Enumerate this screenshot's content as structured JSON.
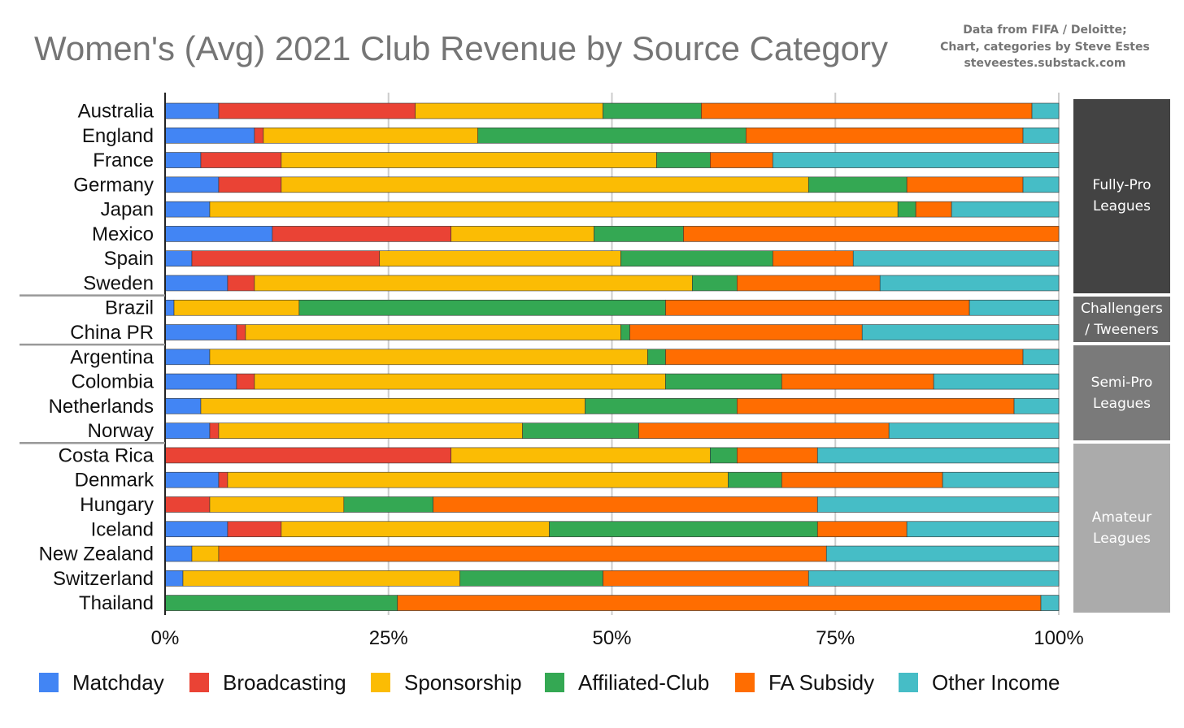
{
  "title": "Women's (Avg) 2021 Club Revenue by Source Category",
  "credit": {
    "line1": "Data from FIFA / Deloitte;",
    "line2": "Chart, categories by Steve Estes",
    "line3": "steveestes.substack.com"
  },
  "groups": [
    {
      "lines": [
        "Fully-Pro",
        "Leagues"
      ],
      "color": "#434343",
      "rows": [
        0,
        7
      ]
    },
    {
      "lines": [
        "Challengers",
        "/ Tweeners"
      ],
      "color": "#666666",
      "rows": [
        8,
        9
      ]
    },
    {
      "lines": [
        "Semi-Pro",
        "Leagues"
      ],
      "color": "#7a7a7a",
      "rows": [
        10,
        13
      ]
    },
    {
      "lines": [
        "Amateur",
        "Leagues"
      ],
      "color": "#ababab",
      "rows": [
        14,
        20
      ]
    }
  ],
  "chart_data": {
    "type": "bar",
    "orientation": "horizontal",
    "stacked": "percent",
    "categories": [
      "Australia",
      "England",
      "France",
      "Germany",
      "Japan",
      "Mexico",
      "Spain",
      "Sweden",
      "Brazil",
      "China PR",
      "Argentina",
      "Colombia",
      "Netherlands",
      "Norway",
      "Costa Rica",
      "Denmark",
      "Hungary",
      "Iceland",
      "New Zealand",
      "Switzerland",
      "Thailand"
    ],
    "series": [
      {
        "name": "Matchday",
        "color": "#4285f4",
        "values": [
          6,
          10,
          4,
          6,
          5,
          12,
          3,
          7,
          1,
          8,
          5,
          8,
          4,
          5,
          0,
          6,
          0,
          7,
          3,
          2,
          0
        ]
      },
      {
        "name": "Broadcasting",
        "color": "#ea4335",
        "values": [
          22,
          1,
          9,
          7,
          0,
          20,
          21,
          3,
          0,
          1,
          0,
          2,
          0,
          1,
          32,
          1,
          5,
          6,
          0,
          0,
          0
        ]
      },
      {
        "name": "Sponsorship",
        "color": "#fbbc04",
        "values": [
          21,
          24,
          42,
          59,
          77,
          16,
          27,
          49,
          14,
          42,
          49,
          46,
          43,
          34,
          29,
          56,
          15,
          30,
          3,
          31,
          0
        ]
      },
      {
        "name": "Affiliated-Club",
        "color": "#34a853",
        "values": [
          11,
          30,
          6,
          11,
          2,
          10,
          17,
          5,
          41,
          1,
          2,
          13,
          17,
          13,
          3,
          6,
          10,
          30,
          0,
          16,
          26
        ]
      },
      {
        "name": "FA Subsidy",
        "color": "#ff6d01",
        "values": [
          37,
          31,
          7,
          13,
          4,
          42,
          9,
          16,
          34,
          26,
          40,
          17,
          31,
          28,
          9,
          18,
          43,
          10,
          68,
          23,
          72
        ]
      },
      {
        "name": "Other Income",
        "color": "#46bdc6",
        "values": [
          3,
          4,
          32,
          4,
          12,
          0,
          23,
          20,
          10,
          22,
          4,
          14,
          5,
          19,
          27,
          13,
          27,
          17,
          26,
          28,
          2
        ]
      }
    ],
    "xticks": [
      "0%",
      "25%",
      "50%",
      "75%",
      "100%"
    ],
    "xlim": [
      0,
      100
    ],
    "grid": true,
    "legend_position": "bottom"
  }
}
